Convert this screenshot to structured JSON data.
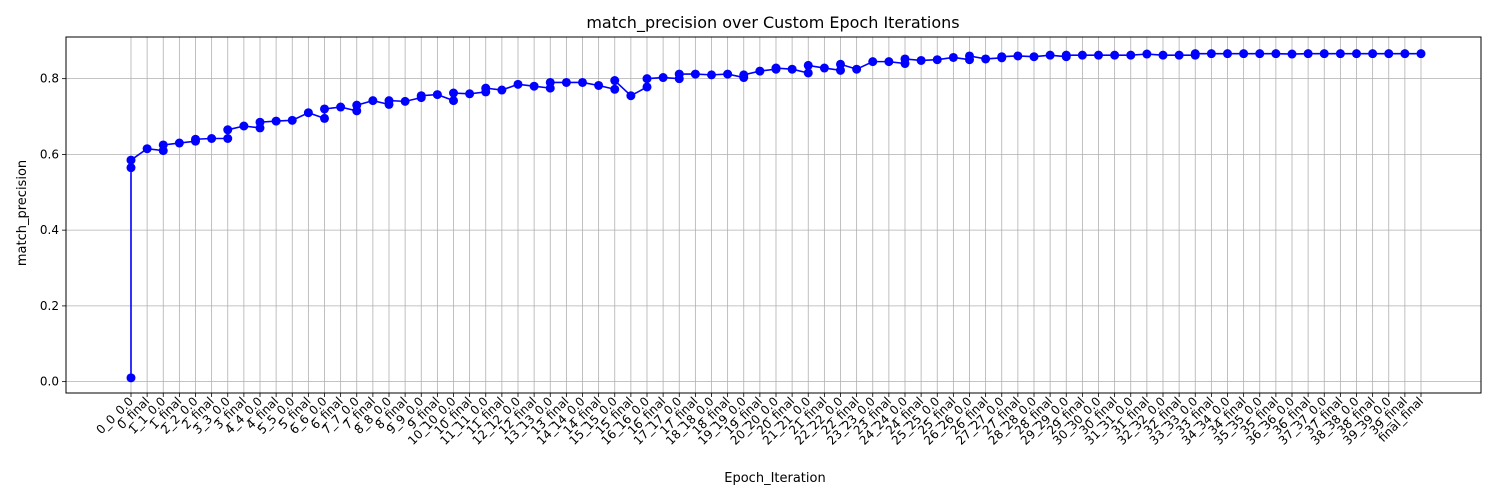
{
  "chart_data": {
    "type": "line",
    "title": "match_precision over Custom Epoch Iterations",
    "xlabel": "Epoch_Iteration",
    "ylabel": "match_precision",
    "ylim": [
      -0.03,
      0.91
    ],
    "yticks": [
      0.0,
      0.2,
      0.4,
      0.6,
      0.8
    ],
    "ytick_labels": [
      "0.0",
      "0.2",
      "0.4",
      "0.6",
      "0.8"
    ],
    "grid": true,
    "line_color": "#0000ff",
    "categories": [
      "0_0_0.0",
      "0_final",
      "1_1_0.0",
      "1_final",
      "2_2_0.0",
      "2_final",
      "3_3_0.0",
      "3_final",
      "4_4_0.0",
      "4_final",
      "5_5_0.0",
      "5_final",
      "6_6_0.0",
      "6_final",
      "7_7_0.0",
      "7_final",
      "8_8_0.0",
      "8_final",
      "9_9_0.0",
      "9_final",
      "10_10_0.0",
      "10_final",
      "11_11_0.0",
      "11_final",
      "12_12_0.0",
      "12_final",
      "13_13_0.0",
      "13_final",
      "14_14_0.0",
      "14_final",
      "15_15_0.0",
      "15_final",
      "16_16_0.0",
      "16_final",
      "17_17_0.0",
      "17_final",
      "18_18_0.0",
      "18_final",
      "19_19_0.0",
      "19_final",
      "20_20_0.0",
      "20_final",
      "21_21_0.0",
      "21_final",
      "22_22_0.0",
      "22_final",
      "23_23_0.0",
      "23_final",
      "24_24_0.0",
      "24_final",
      "25_25_0.0",
      "25_final",
      "26_26_0.0",
      "26_final",
      "27_27_0.0",
      "27_final",
      "28_28_0.0",
      "28_final",
      "29_29_0.0",
      "29_final",
      "30_30_0.0",
      "30_final",
      "31_31_0.0",
      "31_final",
      "32_32_0.0",
      "32_final",
      "33_33_0.0",
      "33_final",
      "34_34_0.0",
      "34_final",
      "35_35_0.0",
      "35_final",
      "36_36_0.0",
      "36_final",
      "37_37_0.0",
      "37_final",
      "38_38_0.0",
      "38_final",
      "39_39_0.0",
      "39_final",
      "final_final"
    ],
    "points": [
      [
        0,
        0.01
      ],
      [
        0,
        0.565
      ],
      [
        0,
        0.585
      ],
      [
        1,
        0.615
      ],
      [
        2,
        0.61
      ],
      [
        2,
        0.625
      ],
      [
        3,
        0.63
      ],
      [
        4,
        0.635
      ],
      [
        4,
        0.64
      ],
      [
        5,
        0.642
      ],
      [
        6,
        0.642
      ],
      [
        6,
        0.665
      ],
      [
        7,
        0.675
      ],
      [
        8,
        0.67
      ],
      [
        8,
        0.685
      ],
      [
        9,
        0.688
      ],
      [
        10,
        0.69
      ],
      [
        11,
        0.71
      ],
      [
        12,
        0.695
      ],
      [
        12,
        0.72
      ],
      [
        13,
        0.725
      ],
      [
        14,
        0.715
      ],
      [
        14,
        0.73
      ],
      [
        15,
        0.742
      ],
      [
        16,
        0.732
      ],
      [
        16,
        0.742
      ],
      [
        17,
        0.74
      ],
      [
        18,
        0.75
      ],
      [
        18,
        0.755
      ],
      [
        19,
        0.758
      ],
      [
        20,
        0.742
      ],
      [
        20,
        0.762
      ],
      [
        21,
        0.76
      ],
      [
        22,
        0.765
      ],
      [
        22,
        0.775
      ],
      [
        23,
        0.77
      ],
      [
        24,
        0.785
      ],
      [
        25,
        0.78
      ],
      [
        26,
        0.775
      ],
      [
        26,
        0.79
      ],
      [
        27,
        0.79
      ],
      [
        28,
        0.79
      ],
      [
        29,
        0.782
      ],
      [
        30,
        0.772
      ],
      [
        30,
        0.795
      ],
      [
        31,
        0.755
      ],
      [
        32,
        0.778
      ],
      [
        32,
        0.8
      ],
      [
        33,
        0.803
      ],
      [
        34,
        0.8
      ],
      [
        34,
        0.812
      ],
      [
        35,
        0.812
      ],
      [
        36,
        0.81
      ],
      [
        37,
        0.812
      ],
      [
        38,
        0.803
      ],
      [
        38,
        0.81
      ],
      [
        39,
        0.82
      ],
      [
        40,
        0.825
      ],
      [
        40,
        0.828
      ],
      [
        41,
        0.825
      ],
      [
        42,
        0.815
      ],
      [
        42,
        0.835
      ],
      [
        43,
        0.828
      ],
      [
        44,
        0.822
      ],
      [
        44,
        0.838
      ],
      [
        45,
        0.825
      ],
      [
        46,
        0.845
      ],
      [
        47,
        0.845
      ],
      [
        48,
        0.84
      ],
      [
        48,
        0.852
      ],
      [
        49,
        0.848
      ],
      [
        50,
        0.85
      ],
      [
        51,
        0.856
      ],
      [
        52,
        0.85
      ],
      [
        52,
        0.86
      ],
      [
        53,
        0.852
      ],
      [
        54,
        0.855
      ],
      [
        54,
        0.858
      ],
      [
        55,
        0.86
      ],
      [
        56,
        0.858
      ],
      [
        57,
        0.862
      ],
      [
        58,
        0.858
      ],
      [
        58,
        0.862
      ],
      [
        59,
        0.862
      ],
      [
        60,
        0.862
      ],
      [
        61,
        0.862
      ],
      [
        62,
        0.862
      ],
      [
        63,
        0.865
      ],
      [
        64,
        0.862
      ],
      [
        65,
        0.862
      ],
      [
        66,
        0.862
      ],
      [
        66,
        0.866
      ],
      [
        67,
        0.866
      ],
      [
        68,
        0.866
      ],
      [
        69,
        0.866
      ],
      [
        70,
        0.866
      ],
      [
        71,
        0.866
      ],
      [
        72,
        0.865
      ],
      [
        73,
        0.866
      ],
      [
        74,
        0.866
      ],
      [
        75,
        0.866
      ],
      [
        76,
        0.866
      ],
      [
        77,
        0.866
      ],
      [
        78,
        0.866
      ],
      [
        79,
        0.866
      ],
      [
        80,
        0.866
      ]
    ]
  }
}
